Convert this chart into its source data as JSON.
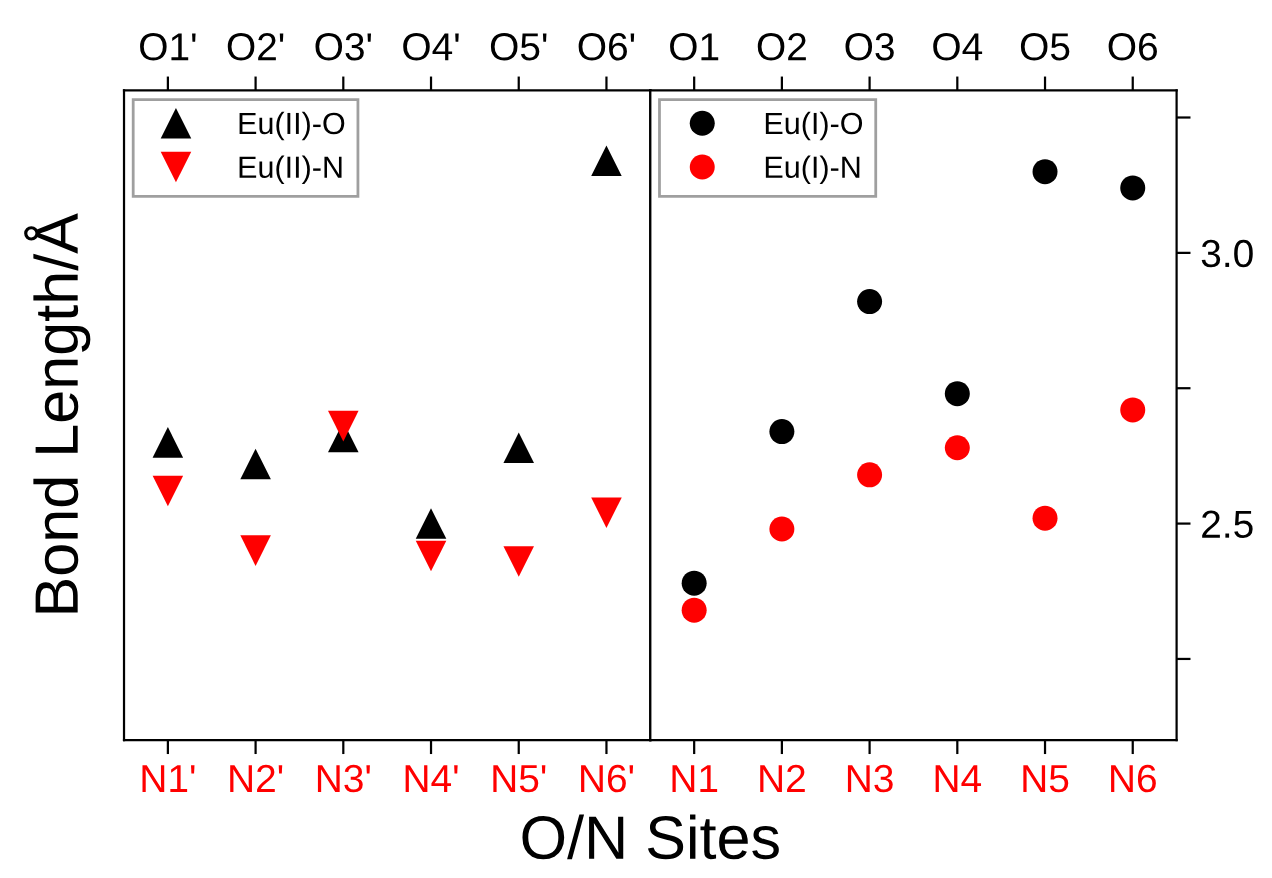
{
  "chart_data": [
    {
      "type": "scatter",
      "categories": [
        "N1'",
        "N2'",
        "N3'",
        "N4'",
        "N5'",
        "N6'"
      ],
      "annotations": [
        "O1'",
        "O2'",
        "O3'",
        "O4'",
        "O5'",
        "O6'"
      ],
      "ylabel": "Bond Length/Å",
      "xlabel": "O/N Sites",
      "ylim": [
        2.1,
        3.3
      ],
      "tick_labels": "x",
      "legend": "top left",
      "series": [
        {
          "name": "Eu(II)-O",
          "color": "#000000",
          "marker": "triangle",
          "values": [
            2.65,
            2.61,
            2.66,
            2.5,
            2.64,
            3.17
          ]
        },
        {
          "name": "Eu(II)-N",
          "color": "#ff0000",
          "marker": "triangle_down",
          "values": [
            2.56,
            2.45,
            2.68,
            2.44,
            2.43,
            2.52
          ]
        }
      ]
    },
    {
      "type": "scatter",
      "categories": [
        "N1",
        "N2",
        "N3",
        "N4",
        "N5",
        "N6"
      ],
      "annotations": [
        "O1",
        "O2",
        "O3",
        "O4",
        "O5",
        "O6"
      ],
      "ylim": [
        2.1,
        3.3
      ],
      "yticks": [
        {
          "value": 2.25,
          "label": null
        },
        2.5,
        {
          "value": 2.75,
          "label": null
        },
        {
          "value": 3.0,
          "label": "3.0"
        },
        {
          "value": 3.25,
          "label": null
        }
      ],
      "legend": "top left",
      "series": [
        {
          "name": "Eu(I)-O",
          "color": "#000000",
          "marker": "circle",
          "values": [
            2.39,
            2.67,
            2.91,
            2.74,
            3.15,
            3.12
          ]
        },
        {
          "name": "Eu(I)-N",
          "color": "#ff0000",
          "marker": "circle",
          "values": [
            2.34,
            2.49,
            2.59,
            2.64,
            2.51,
            2.71
          ]
        }
      ]
    }
  ]
}
